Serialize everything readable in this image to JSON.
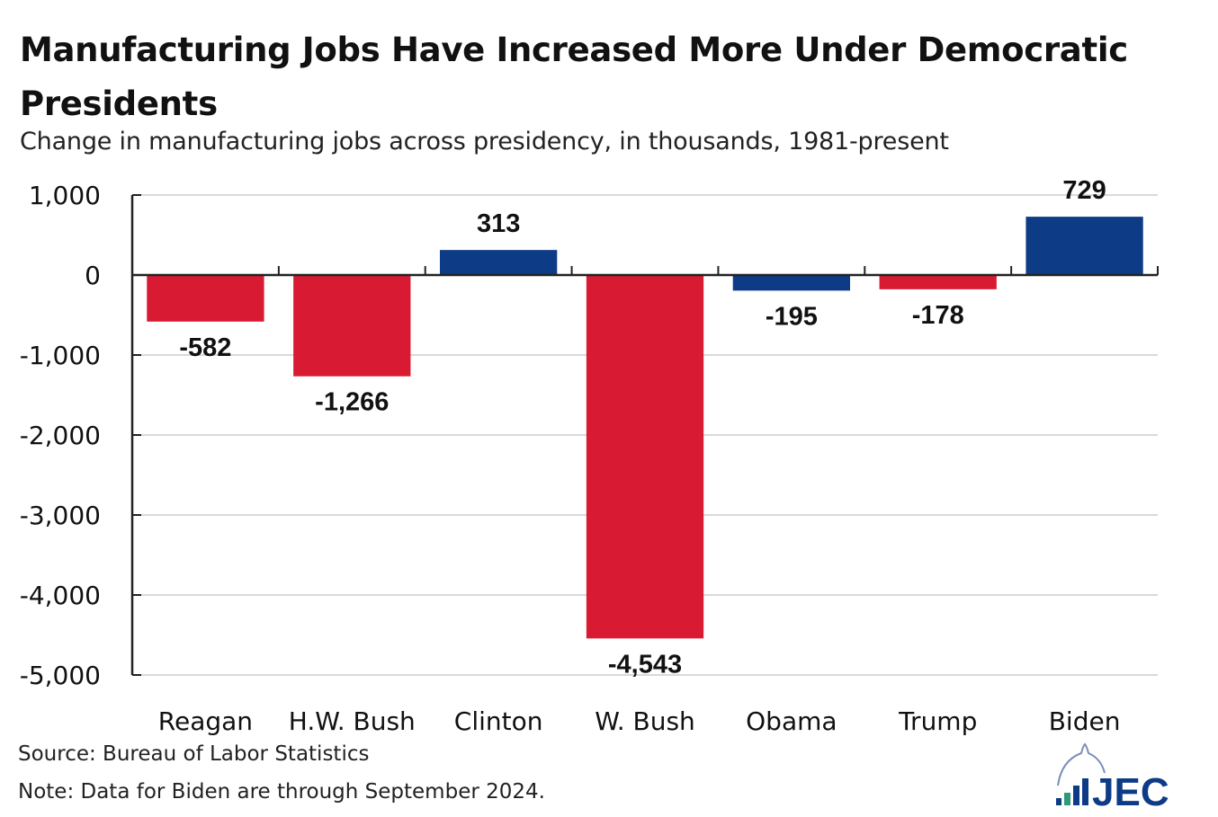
{
  "title": "Manufacturing Jobs Have Increased More Under Democratic Presidents",
  "subtitle": "Change in manufacturing jobs across presidency, in thousands, 1981-present",
  "source": "Source: Bureau of Labor Statistics",
  "note": "Note: Data for Biden are through September 2024.",
  "logo_text": "JEC",
  "colors": {
    "republican": "#D81A33",
    "democratic": "#0E3B86",
    "grid": "#D9D9D9",
    "axis": "#222222"
  },
  "chart_data": {
    "type": "bar",
    "title": "Manufacturing Jobs Have Increased More Under Democratic Presidents",
    "subtitle": "Change in manufacturing jobs across presidency, in thousands, 1981-present",
    "categories": [
      "Reagan",
      "H.W. Bush",
      "Clinton",
      "W. Bush",
      "Obama",
      "Trump",
      "Biden"
    ],
    "values": [
      -582,
      -1266,
      313,
      -4543,
      -195,
      -178,
      729
    ],
    "data_labels": [
      "-582",
      "-1,266",
      "313",
      "-4,543",
      "-195",
      "-178",
      "729"
    ],
    "party_colors": [
      "republican",
      "republican",
      "democratic",
      "republican",
      "democratic",
      "republican",
      "democratic"
    ],
    "ylim": [
      -5000,
      1000
    ],
    "yticks": [
      1000,
      0,
      -1000,
      -2000,
      -3000,
      -4000,
      -5000
    ],
    "ytick_labels": [
      "1,000",
      "0",
      "-1,000",
      "-2,000",
      "-3,000",
      "-4,000",
      "-5,000"
    ],
    "xlabel": "",
    "ylabel": "",
    "grid": "horizontal",
    "legend": "none"
  }
}
